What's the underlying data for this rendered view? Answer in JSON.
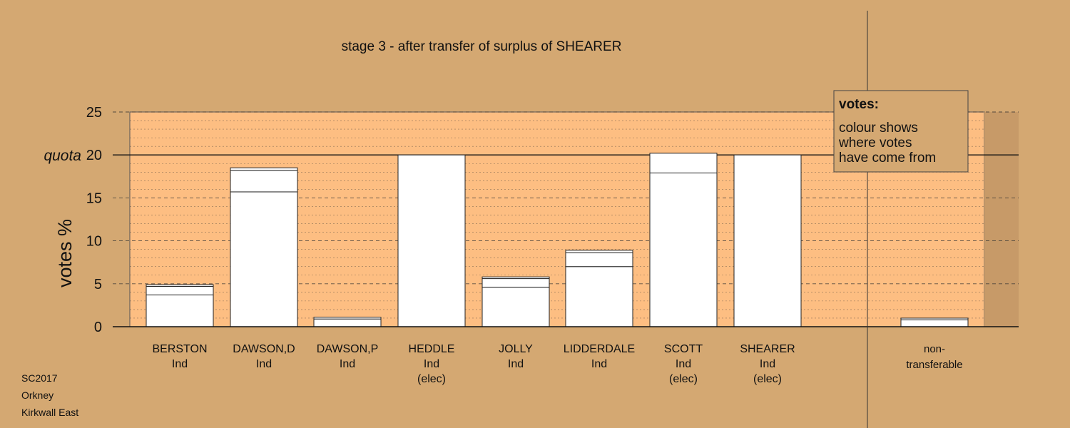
{
  "chart_data": {
    "type": "bar",
    "stacked": true,
    "title": "stage 3 - after transfer of surplus of SHEARER",
    "ylabel": "votes %",
    "ylim": [
      0,
      25
    ],
    "yticks": [
      0,
      5,
      10,
      15,
      20,
      25
    ],
    "quota": {
      "label": "quota",
      "value": 20
    },
    "grid": "dashed major every 5, dotted minor every 1",
    "candidates": [
      {
        "name": "BERSTON",
        "party": "Ind",
        "status": "",
        "segments": [
          3.7,
          1.0,
          0.2
        ],
        "total": 4.9
      },
      {
        "name": "DAWSON,D",
        "party": "Ind",
        "status": "",
        "segments": [
          15.7,
          2.5,
          0.3
        ],
        "total": 18.5
      },
      {
        "name": "DAWSON,P",
        "party": "Ind",
        "status": "",
        "segments": [
          0.9,
          0.2
        ],
        "total": 1.1
      },
      {
        "name": "HEDDLE",
        "party": "Ind",
        "status": "(elec)",
        "segments": [
          20.0
        ],
        "total": 20.0
      },
      {
        "name": "JOLLY",
        "party": "Ind",
        "status": "",
        "segments": [
          4.6,
          1.0,
          0.2
        ],
        "total": 5.8
      },
      {
        "name": "LIDDERDALE",
        "party": "Ind",
        "status": "",
        "segments": [
          7.0,
          1.6,
          0.3
        ],
        "total": 8.9
      },
      {
        "name": "SCOTT",
        "party": "Ind",
        "status": "(elec)",
        "segments": [
          17.9,
          2.3
        ],
        "total": 20.2
      },
      {
        "name": "SHEARER",
        "party": "Ind",
        "status": "(elec)",
        "segments": [
          20.0
        ],
        "total": 20.0
      }
    ],
    "non_transferable": {
      "label_line1": "non-",
      "label_line2": "transferable",
      "segments": [
        0.8,
        0.2
      ],
      "total": 1.0
    },
    "legend": {
      "title": "votes:",
      "lines": [
        "colour shows",
        "where votes",
        "have come from"
      ],
      "placement": "top-right"
    }
  },
  "footer": [
    "SC2017",
    "Orkney",
    "Kirkwall East"
  ]
}
